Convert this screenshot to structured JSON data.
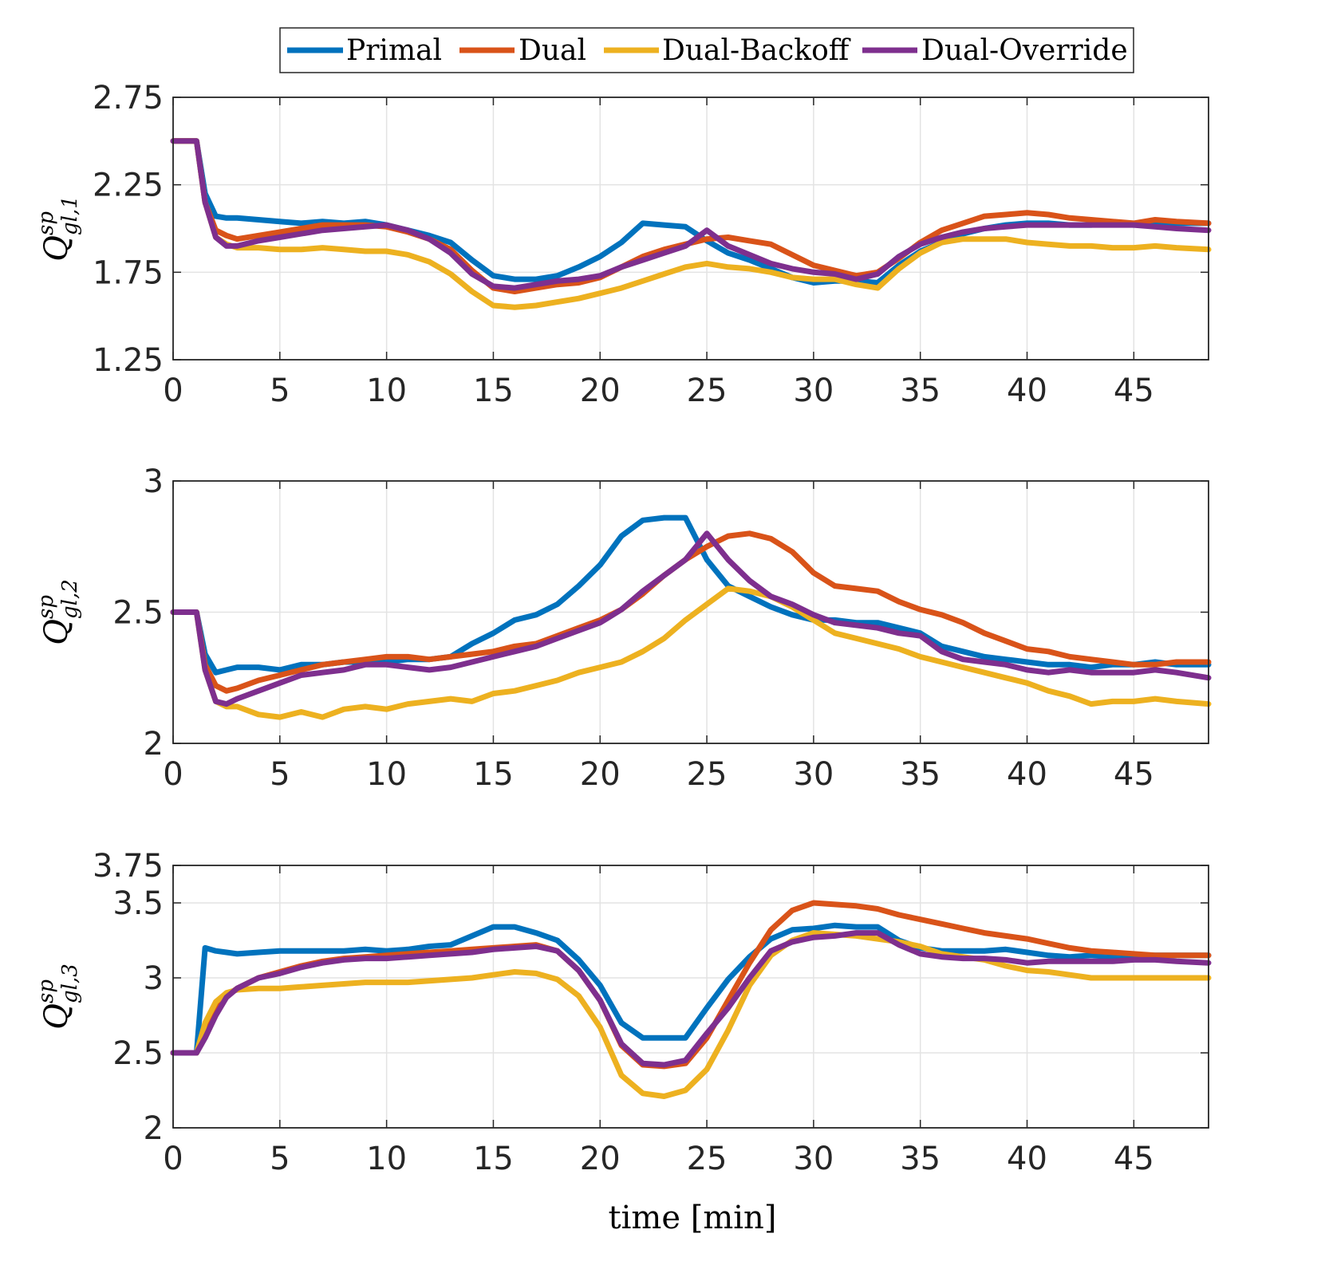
{
  "chart_data": [
    {
      "type": "line",
      "ylabel": {
        "main": "Q",
        "sup": "sp",
        "sub": "gl,1"
      },
      "xlabel": "",
      "xlim": [
        0,
        48.5
      ],
      "ylim": [
        1.25,
        2.75
      ],
      "xticks": [
        "0",
        "5",
        "10",
        "15",
        "20",
        "25",
        "30",
        "35",
        "40",
        "45"
      ],
      "yticks": [
        "1.25",
        "1.75",
        "2.25",
        "2.75"
      ],
      "x": [
        0,
        1.1,
        1.5,
        2,
        2.5,
        3,
        4,
        5,
        6,
        7,
        8,
        9,
        10,
        11,
        12,
        13,
        14,
        15,
        16,
        17,
        18,
        19,
        20,
        21,
        22,
        23,
        24,
        25,
        26,
        27,
        28,
        29,
        30,
        31,
        32,
        33,
        34,
        35,
        36,
        37,
        38,
        39,
        40,
        41,
        42,
        43,
        44,
        45,
        46,
        47,
        48.5
      ],
      "series": [
        {
          "name": "Primal",
          "values": [
            2.5,
            2.5,
            2.2,
            2.07,
            2.06,
            2.06,
            2.05,
            2.04,
            2.03,
            2.04,
            2.03,
            2.04,
            2.02,
            1.99,
            1.96,
            1.92,
            1.82,
            1.73,
            1.71,
            1.71,
            1.73,
            1.78,
            1.84,
            1.92,
            2.03,
            2.02,
            2.01,
            1.93,
            1.86,
            1.82,
            1.77,
            1.72,
            1.69,
            1.7,
            1.7,
            1.69,
            1.79,
            1.87,
            1.92,
            1.97,
            2.0,
            2.02,
            2.03,
            2.03,
            2.02,
            2.02,
            2.03,
            2.02,
            2.04,
            2.03,
            2.03
          ]
        },
        {
          "name": "Dual",
          "values": [
            2.5,
            2.5,
            2.15,
            1.99,
            1.96,
            1.94,
            1.96,
            1.98,
            2.0,
            2.02,
            2.02,
            2.02,
            2.01,
            1.98,
            1.94,
            1.88,
            1.76,
            1.66,
            1.64,
            1.66,
            1.68,
            1.69,
            1.72,
            1.78,
            1.84,
            1.88,
            1.91,
            1.94,
            1.95,
            1.93,
            1.91,
            1.85,
            1.79,
            1.76,
            1.73,
            1.75,
            1.83,
            1.92,
            1.99,
            2.03,
            2.07,
            2.08,
            2.09,
            2.08,
            2.06,
            2.05,
            2.04,
            2.03,
            2.05,
            2.04,
            2.03
          ]
        },
        {
          "name": "Dual-Backoff",
          "values": [
            2.5,
            2.5,
            2.15,
            1.95,
            1.91,
            1.89,
            1.89,
            1.88,
            1.88,
            1.89,
            1.88,
            1.87,
            1.87,
            1.85,
            1.81,
            1.74,
            1.64,
            1.56,
            1.55,
            1.56,
            1.58,
            1.6,
            1.63,
            1.66,
            1.7,
            1.74,
            1.78,
            1.8,
            1.78,
            1.77,
            1.75,
            1.72,
            1.71,
            1.71,
            1.68,
            1.66,
            1.77,
            1.86,
            1.92,
            1.94,
            1.94,
            1.94,
            1.92,
            1.91,
            1.9,
            1.9,
            1.89,
            1.89,
            1.9,
            1.89,
            1.88
          ]
        },
        {
          "name": "Dual-Override",
          "values": [
            2.5,
            2.5,
            2.15,
            1.95,
            1.9,
            1.9,
            1.93,
            1.95,
            1.97,
            1.99,
            2.0,
            2.01,
            2.02,
            1.99,
            1.94,
            1.86,
            1.74,
            1.67,
            1.66,
            1.68,
            1.7,
            1.71,
            1.73,
            1.78,
            1.82,
            1.86,
            1.9,
            1.99,
            1.9,
            1.85,
            1.8,
            1.77,
            1.75,
            1.74,
            1.71,
            1.74,
            1.84,
            1.91,
            1.95,
            1.98,
            2.0,
            2.01,
            2.02,
            2.02,
            2.02,
            2.02,
            2.02,
            2.02,
            2.01,
            2.0,
            1.99
          ]
        }
      ]
    },
    {
      "type": "line",
      "ylabel": {
        "main": "Q",
        "sup": "sp",
        "sub": "gl,2"
      },
      "xlabel": "",
      "xlim": [
        0,
        48.5
      ],
      "ylim": [
        2,
        3
      ],
      "xticks": [
        "0",
        "5",
        "10",
        "15",
        "20",
        "25",
        "30",
        "35",
        "40",
        "45"
      ],
      "yticks": [
        "2",
        "2.5",
        "3"
      ],
      "x": [
        0,
        1.1,
        1.5,
        2,
        2.5,
        3,
        4,
        5,
        6,
        7,
        8,
        9,
        10,
        11,
        12,
        13,
        14,
        15,
        16,
        17,
        18,
        19,
        20,
        21,
        22,
        23,
        24,
        25,
        26,
        27,
        28,
        29,
        30,
        31,
        32,
        33,
        34,
        35,
        36,
        37,
        38,
        39,
        40,
        41,
        42,
        43,
        44,
        45,
        46,
        47,
        48.5
      ],
      "series": [
        {
          "name": "Primal",
          "values": [
            2.5,
            2.5,
            2.34,
            2.27,
            2.28,
            2.29,
            2.29,
            2.28,
            2.3,
            2.3,
            2.31,
            2.31,
            2.31,
            2.32,
            2.32,
            2.33,
            2.38,
            2.42,
            2.47,
            2.49,
            2.53,
            2.6,
            2.68,
            2.79,
            2.85,
            2.86,
            2.86,
            2.7,
            2.6,
            2.56,
            2.52,
            2.49,
            2.47,
            2.47,
            2.46,
            2.46,
            2.44,
            2.42,
            2.37,
            2.35,
            2.33,
            2.32,
            2.31,
            2.3,
            2.3,
            2.29,
            2.3,
            2.3,
            2.31,
            2.3,
            2.3
          ]
        },
        {
          "name": "Dual",
          "values": [
            2.5,
            2.5,
            2.3,
            2.22,
            2.2,
            2.21,
            2.24,
            2.26,
            2.28,
            2.3,
            2.31,
            2.32,
            2.33,
            2.33,
            2.32,
            2.33,
            2.34,
            2.35,
            2.37,
            2.38,
            2.41,
            2.44,
            2.47,
            2.51,
            2.57,
            2.64,
            2.7,
            2.75,
            2.79,
            2.8,
            2.78,
            2.73,
            2.65,
            2.6,
            2.59,
            2.58,
            2.54,
            2.51,
            2.49,
            2.46,
            2.42,
            2.39,
            2.36,
            2.35,
            2.33,
            2.32,
            2.31,
            2.3,
            2.3,
            2.31,
            2.31
          ]
        },
        {
          "name": "Dual-Backoff",
          "values": [
            2.5,
            2.5,
            2.28,
            2.16,
            2.14,
            2.14,
            2.11,
            2.1,
            2.12,
            2.1,
            2.13,
            2.14,
            2.13,
            2.15,
            2.16,
            2.17,
            2.16,
            2.19,
            2.2,
            2.22,
            2.24,
            2.27,
            2.29,
            2.31,
            2.35,
            2.4,
            2.47,
            2.53,
            2.59,
            2.58,
            2.56,
            2.52,
            2.47,
            2.42,
            2.4,
            2.38,
            2.36,
            2.33,
            2.31,
            2.29,
            2.27,
            2.25,
            2.23,
            2.2,
            2.18,
            2.15,
            2.16,
            2.16,
            2.17,
            2.16,
            2.15
          ]
        },
        {
          "name": "Dual-Override",
          "values": [
            2.5,
            2.5,
            2.28,
            2.16,
            2.15,
            2.17,
            2.2,
            2.23,
            2.26,
            2.27,
            2.28,
            2.3,
            2.3,
            2.29,
            2.28,
            2.29,
            2.31,
            2.33,
            2.35,
            2.37,
            2.4,
            2.43,
            2.46,
            2.51,
            2.58,
            2.64,
            2.7,
            2.8,
            2.7,
            2.62,
            2.56,
            2.53,
            2.49,
            2.46,
            2.45,
            2.44,
            2.42,
            2.41,
            2.35,
            2.32,
            2.31,
            2.3,
            2.28,
            2.27,
            2.28,
            2.27,
            2.27,
            2.27,
            2.28,
            2.27,
            2.25
          ]
        }
      ]
    },
    {
      "type": "line",
      "ylabel": {
        "main": "Q",
        "sup": "sp",
        "sub": "gl,3"
      },
      "xlabel": "time [min]",
      "xlim": [
        0,
        48.5
      ],
      "ylim": [
        2,
        3.75
      ],
      "xticks": [
        "0",
        "5",
        "10",
        "15",
        "20",
        "25",
        "30",
        "35",
        "40",
        "45"
      ],
      "yticks": [
        "2",
        "2.5",
        "3",
        "3.5",
        "3.75"
      ],
      "x": [
        0,
        1.1,
        1.5,
        2,
        2.5,
        3,
        4,
        5,
        6,
        7,
        8,
        9,
        10,
        11,
        12,
        13,
        14,
        15,
        16,
        17,
        18,
        19,
        20,
        21,
        22,
        23,
        24,
        25,
        26,
        27,
        28,
        29,
        30,
        31,
        32,
        33,
        34,
        35,
        36,
        37,
        38,
        39,
        40,
        41,
        42,
        43,
        44,
        45,
        46,
        47,
        48.5
      ],
      "series": [
        {
          "name": "Primal",
          "values": [
            2.5,
            2.5,
            3.2,
            3.18,
            3.17,
            3.16,
            3.17,
            3.18,
            3.18,
            3.18,
            3.18,
            3.19,
            3.18,
            3.19,
            3.21,
            3.22,
            3.28,
            3.34,
            3.34,
            3.3,
            3.25,
            3.12,
            2.95,
            2.7,
            2.6,
            2.6,
            2.6,
            2.8,
            2.99,
            3.14,
            3.26,
            3.32,
            3.33,
            3.35,
            3.34,
            3.34,
            3.25,
            3.2,
            3.18,
            3.18,
            3.18,
            3.19,
            3.17,
            3.15,
            3.14,
            3.15,
            3.14,
            3.15,
            3.15,
            3.15,
            3.15
          ]
        },
        {
          "name": "Dual",
          "values": [
            2.5,
            2.5,
            2.62,
            2.78,
            2.88,
            2.93,
            3.0,
            3.04,
            3.08,
            3.11,
            3.13,
            3.14,
            3.15,
            3.16,
            3.17,
            3.18,
            3.19,
            3.2,
            3.21,
            3.22,
            3.18,
            3.05,
            2.85,
            2.55,
            2.42,
            2.41,
            2.43,
            2.6,
            2.85,
            3.1,
            3.32,
            3.45,
            3.5,
            3.49,
            3.48,
            3.46,
            3.42,
            3.39,
            3.36,
            3.33,
            3.3,
            3.28,
            3.26,
            3.23,
            3.2,
            3.18,
            3.17,
            3.16,
            3.15,
            3.15,
            3.15
          ]
        },
        {
          "name": "Dual-Backoff",
          "values": [
            2.5,
            2.5,
            2.7,
            2.84,
            2.9,
            2.92,
            2.93,
            2.93,
            2.94,
            2.95,
            2.96,
            2.97,
            2.97,
            2.97,
            2.98,
            2.99,
            3.0,
            3.02,
            3.04,
            3.03,
            2.99,
            2.88,
            2.67,
            2.35,
            2.23,
            2.21,
            2.25,
            2.39,
            2.65,
            2.95,
            3.15,
            3.25,
            3.3,
            3.29,
            3.28,
            3.26,
            3.24,
            3.21,
            3.16,
            3.14,
            3.12,
            3.08,
            3.05,
            3.04,
            3.02,
            3.0,
            3.0,
            3.0,
            3.0,
            3.0,
            3.0
          ]
        },
        {
          "name": "Dual-Override",
          "values": [
            2.5,
            2.5,
            2.6,
            2.75,
            2.87,
            2.93,
            3.0,
            3.03,
            3.07,
            3.1,
            3.12,
            3.13,
            3.13,
            3.14,
            3.15,
            3.16,
            3.17,
            3.19,
            3.2,
            3.21,
            3.18,
            3.05,
            2.85,
            2.56,
            2.43,
            2.42,
            2.45,
            2.63,
            2.8,
            3.0,
            3.18,
            3.24,
            3.27,
            3.28,
            3.3,
            3.3,
            3.22,
            3.16,
            3.14,
            3.13,
            3.13,
            3.12,
            3.1,
            3.11,
            3.11,
            3.11,
            3.11,
            3.12,
            3.12,
            3.11,
            3.1
          ]
        }
      ]
    }
  ],
  "legend": {
    "position": "top-center",
    "entries": [
      {
        "label": "Primal",
        "color": "#0072BD"
      },
      {
        "label": "Dual",
        "color": "#D95319"
      },
      {
        "label": "Dual-Backoff",
        "color": "#EDB120"
      },
      {
        "label": "Dual-Override",
        "color": "#7E2F8E"
      }
    ]
  }
}
